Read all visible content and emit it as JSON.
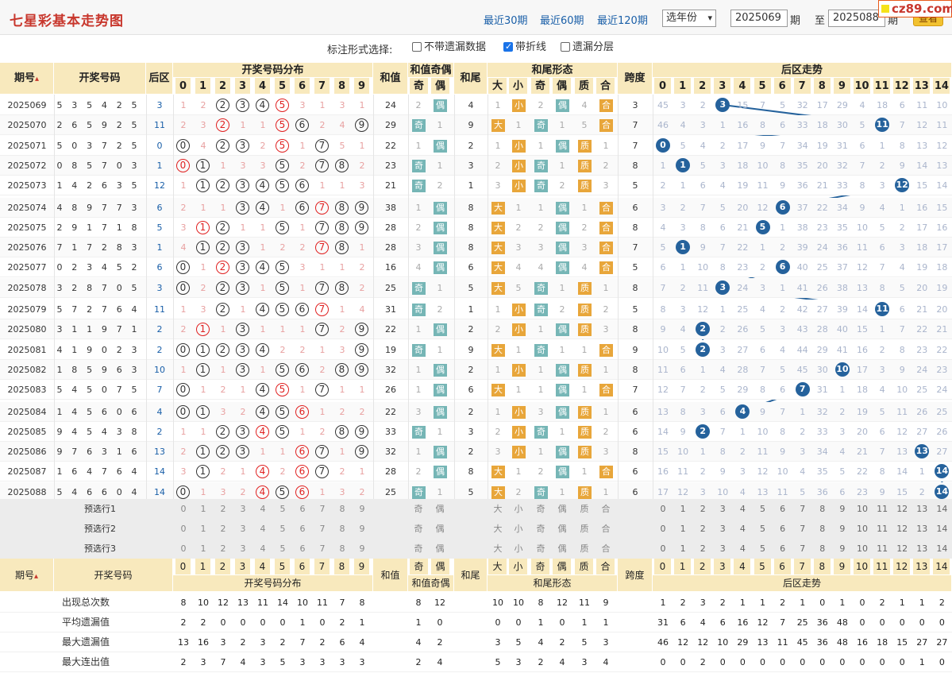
{
  "header": {
    "title": "七星彩基本走势图",
    "links": [
      "最近30期",
      "最近60期",
      "最近120期"
    ],
    "year_select": "选年份",
    "from_value": "2025069",
    "period_label": "期",
    "to_label": "至",
    "to_value": "2025088",
    "period_label2": "期",
    "view_button": "查看",
    "watermark": "cz89.com"
  },
  "options": {
    "caption": "标注形式选择:",
    "items": [
      {
        "label": "不带遗漏数据",
        "checked": false
      },
      {
        "label": "带折线",
        "checked": true
      },
      {
        "label": "遗漏分层",
        "checked": false
      }
    ]
  },
  "columns": {
    "issue": "期号",
    "numbers": "开奖号码",
    "back": "后区",
    "dist": "开奖号码分布",
    "sum": "和值",
    "sum_oe": "和值奇偶",
    "odd": "奇",
    "even": "偶",
    "tail": "和尾",
    "tail_form": "和尾形态",
    "big": "大",
    "small": "小",
    "prime": "质",
    "composite": "合",
    "span": "跨度",
    "back_trend": "后区走势"
  },
  "rows": [
    {
      "issue": "2025069",
      "nums": [
        5,
        3,
        5,
        4,
        2,
        5
      ],
      "back": 3,
      "dist": [
        "1",
        "2",
        "●",
        "●",
        "●",
        "●",
        "3",
        "1",
        "3",
        "1"
      ],
      "sum": 24,
      "oe": [
        "2",
        "偶"
      ],
      "tail": 4,
      "tf": [
        "1",
        "小",
        "2",
        "偶",
        "4",
        "合"
      ],
      "span": 3,
      "bt": [
        "45",
        "3",
        "2",
        "●",
        "15",
        "7",
        "5",
        "32",
        "17",
        "29",
        "4",
        "18",
        "6",
        "11",
        "10"
      ]
    },
    {
      "issue": "2025070",
      "nums": [
        2,
        6,
        5,
        9,
        2,
        5
      ],
      "back": 11,
      "dist": [
        "2",
        "3",
        "●",
        "1",
        "1",
        "●",
        "●",
        "2",
        "4",
        "●"
      ],
      "sum": 29,
      "oe": [
        "奇",
        "1"
      ],
      "tail": 9,
      "tf": [
        "大",
        "1",
        "奇",
        "1",
        "5",
        "合"
      ],
      "span": 7,
      "bt": [
        "46",
        "4",
        "3",
        "1",
        "16",
        "8",
        "6",
        "33",
        "18",
        "30",
        "5",
        "●",
        "7",
        "12",
        "11"
      ]
    },
    {
      "issue": "2025071",
      "nums": [
        5,
        0,
        3,
        7,
        2,
        5
      ],
      "back": 0,
      "dist": [
        "●",
        "4",
        "●",
        "●",
        "2",
        "●",
        "1",
        "●",
        "5",
        "1"
      ],
      "sum": 22,
      "oe": [
        "1",
        "偶"
      ],
      "tail": 2,
      "tf": [
        "1",
        "小",
        "1",
        "偶",
        "质",
        "1"
      ],
      "span": 7,
      "bt": [
        "●",
        "5",
        "4",
        "2",
        "17",
        "9",
        "7",
        "34",
        "19",
        "31",
        "6",
        "1",
        "8",
        "13",
        "12"
      ]
    },
    {
      "issue": "2025072",
      "nums": [
        0,
        8,
        5,
        7,
        0,
        3
      ],
      "back": 1,
      "dist": [
        "●",
        "●",
        "1",
        "3",
        "3",
        "●",
        "2",
        "●",
        "●",
        "2"
      ],
      "sum": 23,
      "oe": [
        "奇",
        "1"
      ],
      "tail": 3,
      "tf": [
        "2",
        "小",
        "奇",
        "1",
        "质",
        "2"
      ],
      "span": 8,
      "bt": [
        "1",
        "●",
        "5",
        "3",
        "18",
        "10",
        "8",
        "35",
        "20",
        "32",
        "7",
        "2",
        "9",
        "14",
        "13"
      ]
    },
    {
      "issue": "2025073",
      "nums": [
        1,
        4,
        2,
        6,
        3,
        5
      ],
      "back": 12,
      "dist": [
        "1",
        "●",
        "●",
        "●",
        "●",
        "●",
        "●",
        "1",
        "1",
        "3"
      ],
      "sum": 21,
      "oe": [
        "奇",
        "2"
      ],
      "tail": 1,
      "tf": [
        "3",
        "小",
        "奇",
        "2",
        "质",
        "3"
      ],
      "span": 5,
      "bt": [
        "2",
        "1",
        "6",
        "4",
        "19",
        "11",
        "9",
        "36",
        "21",
        "33",
        "8",
        "3",
        "●",
        "15",
        "14"
      ]
    },
    {
      "issue": "2025074",
      "nums": [
        4,
        8,
        9,
        7,
        7,
        3
      ],
      "back": 6,
      "dist": [
        "2",
        "1",
        "1",
        "●",
        "●",
        "1",
        "●",
        "●",
        "●",
        "●"
      ],
      "sum": 38,
      "oe": [
        "1",
        "偶"
      ],
      "tail": 8,
      "tf": [
        "大",
        "1",
        "1",
        "偶",
        "1",
        "合"
      ],
      "span": 6,
      "bt": [
        "3",
        "2",
        "7",
        "5",
        "20",
        "12",
        "●",
        "37",
        "22",
        "34",
        "9",
        "4",
        "1",
        "16",
        "15"
      ]
    },
    {
      "issue": "2025075",
      "nums": [
        2,
        9,
        1,
        7,
        1,
        8
      ],
      "back": 5,
      "dist": [
        "3",
        "●",
        "●",
        "1",
        "1",
        "●",
        "1",
        "●",
        "●",
        "●"
      ],
      "sum": 28,
      "oe": [
        "2",
        "偶"
      ],
      "tail": 8,
      "tf": [
        "大",
        "2",
        "2",
        "偶",
        "2",
        "合"
      ],
      "span": 8,
      "bt": [
        "4",
        "3",
        "8",
        "6",
        "21",
        "●",
        "1",
        "38",
        "23",
        "35",
        "10",
        "5",
        "2",
        "17",
        "16"
      ]
    },
    {
      "issue": "2025076",
      "nums": [
        7,
        1,
        7,
        2,
        8,
        3
      ],
      "back": 1,
      "dist": [
        "4",
        "●",
        "●",
        "●",
        "1",
        "2",
        "2",
        "●",
        "●",
        "1"
      ],
      "sum": 28,
      "oe": [
        "3",
        "偶"
      ],
      "tail": 8,
      "tf": [
        "大",
        "3",
        "3",
        "偶",
        "3",
        "合"
      ],
      "span": 7,
      "bt": [
        "5",
        "●",
        "9",
        "7",
        "22",
        "1",
        "2",
        "39",
        "24",
        "36",
        "11",
        "6",
        "3",
        "18",
        "17"
      ]
    },
    {
      "issue": "2025077",
      "nums": [
        0,
        2,
        3,
        4,
        5,
        2
      ],
      "back": 6,
      "dist": [
        "●",
        "1",
        "●",
        "●",
        "●",
        "●",
        "3",
        "1",
        "1",
        "2"
      ],
      "sum": 16,
      "oe": [
        "4",
        "偶"
      ],
      "tail": 6,
      "tf": [
        "大",
        "4",
        "4",
        "偶",
        "4",
        "合"
      ],
      "span": 5,
      "bt": [
        "6",
        "1",
        "10",
        "8",
        "23",
        "2",
        "●",
        "40",
        "25",
        "37",
        "12",
        "7",
        "4",
        "19",
        "18"
      ]
    },
    {
      "issue": "2025078",
      "nums": [
        3,
        2,
        8,
        7,
        0,
        5
      ],
      "back": 3,
      "dist": [
        "●",
        "2",
        "●",
        "●",
        "1",
        "●",
        "1",
        "●",
        "●",
        "2"
      ],
      "sum": 25,
      "oe": [
        "奇",
        "1"
      ],
      "tail": 5,
      "tf": [
        "大",
        "5",
        "奇",
        "1",
        "质",
        "1"
      ],
      "span": 8,
      "bt": [
        "7",
        "2",
        "11",
        "●",
        "24",
        "3",
        "1",
        "41",
        "26",
        "38",
        "13",
        "8",
        "5",
        "20",
        "19"
      ]
    },
    {
      "issue": "2025079",
      "nums": [
        5,
        7,
        2,
        7,
        6,
        4
      ],
      "back": 11,
      "dist": [
        "1",
        "3",
        "●",
        "1",
        "●",
        "●",
        "●",
        "●",
        "1",
        "4"
      ],
      "sum": 31,
      "oe": [
        "奇",
        "2"
      ],
      "tail": 1,
      "tf": [
        "1",
        "小",
        "奇",
        "2",
        "质",
        "2"
      ],
      "span": 5,
      "bt": [
        "8",
        "3",
        "12",
        "1",
        "25",
        "4",
        "2",
        "42",
        "27",
        "39",
        "14",
        "●",
        "6",
        "21",
        "20"
      ]
    },
    {
      "issue": "2025080",
      "nums": [
        3,
        1,
        1,
        9,
        7,
        1
      ],
      "back": 2,
      "dist": [
        "2",
        "●",
        "1",
        "●",
        "1",
        "1",
        "1",
        "●",
        "2",
        "●"
      ],
      "sum": 22,
      "oe": [
        "1",
        "偶"
      ],
      "tail": 2,
      "tf": [
        "2",
        "小",
        "1",
        "偶",
        "质",
        "3"
      ],
      "span": 8,
      "bt": [
        "9",
        "4",
        "●",
        "2",
        "26",
        "5",
        "3",
        "43",
        "28",
        "40",
        "15",
        "1",
        "7",
        "22",
        "21"
      ]
    },
    {
      "issue": "2025081",
      "nums": [
        4,
        1,
        9,
        0,
        2,
        3
      ],
      "back": 2,
      "dist": [
        "●",
        "●",
        "●",
        "●",
        "●",
        "2",
        "2",
        "1",
        "3",
        "●"
      ],
      "sum": 19,
      "oe": [
        "奇",
        "1"
      ],
      "tail": 9,
      "tf": [
        "大",
        "1",
        "奇",
        "1",
        "1",
        "合"
      ],
      "span": 9,
      "bt": [
        "10",
        "5",
        "●",
        "3",
        "27",
        "6",
        "4",
        "44",
        "29",
        "41",
        "16",
        "2",
        "8",
        "23",
        "22"
      ]
    },
    {
      "issue": "2025082",
      "nums": [
        1,
        8,
        5,
        9,
        6,
        3
      ],
      "back": 10,
      "dist": [
        "1",
        "●",
        "1",
        "●",
        "1",
        "●",
        "●",
        "2",
        "●",
        "●"
      ],
      "sum": 32,
      "oe": [
        "1",
        "偶"
      ],
      "tail": 2,
      "tf": [
        "1",
        "小",
        "1",
        "偶",
        "质",
        "1"
      ],
      "span": 8,
      "bt": [
        "11",
        "6",
        "1",
        "4",
        "28",
        "7",
        "5",
        "45",
        "30",
        "●",
        "17",
        "3",
        "9",
        "24",
        "23"
      ]
    },
    {
      "issue": "2025083",
      "nums": [
        5,
        4,
        5,
        0,
        7,
        5
      ],
      "back": 7,
      "dist": [
        "●",
        "1",
        "2",
        "1",
        "●",
        "●",
        "1",
        "●",
        "1",
        "1"
      ],
      "sum": 26,
      "oe": [
        "1",
        "偶"
      ],
      "tail": 6,
      "tf": [
        "大",
        "1",
        "1",
        "偶",
        "1",
        "合"
      ],
      "span": 7,
      "bt": [
        "12",
        "7",
        "2",
        "5",
        "29",
        "8",
        "6",
        "●",
        "31",
        "1",
        "18",
        "4",
        "10",
        "25",
        "24"
      ]
    },
    {
      "issue": "2025084",
      "nums": [
        1,
        4,
        5,
        6,
        0,
        6
      ],
      "back": 4,
      "dist": [
        "●",
        "●",
        "3",
        "2",
        "●",
        "●",
        "●",
        "1",
        "2",
        "2"
      ],
      "sum": 22,
      "oe": [
        "3",
        "偶"
      ],
      "tail": 2,
      "tf": [
        "1",
        "小",
        "3",
        "偶",
        "质",
        "1"
      ],
      "span": 6,
      "bt": [
        "13",
        "8",
        "3",
        "6",
        "●",
        "9",
        "7",
        "1",
        "32",
        "2",
        "19",
        "5",
        "11",
        "26",
        "25"
      ]
    },
    {
      "issue": "2025085",
      "nums": [
        9,
        4,
        5,
        4,
        3,
        8
      ],
      "back": 2,
      "dist": [
        "1",
        "1",
        "●",
        "●",
        "●",
        "●",
        "1",
        "2",
        "●",
        "●"
      ],
      "sum": 33,
      "oe": [
        "奇",
        "1"
      ],
      "tail": 3,
      "tf": [
        "2",
        "小",
        "奇",
        "1",
        "质",
        "2"
      ],
      "span": 6,
      "bt": [
        "14",
        "9",
        "●",
        "7",
        "1",
        "10",
        "8",
        "2",
        "33",
        "3",
        "20",
        "6",
        "12",
        "27",
        "26"
      ]
    },
    {
      "issue": "2025086",
      "nums": [
        9,
        7,
        6,
        3,
        1,
        6
      ],
      "back": 13,
      "dist": [
        "2",
        "●",
        "●",
        "●",
        "1",
        "1",
        "●",
        "●",
        "1",
        "●"
      ],
      "sum": 32,
      "oe": [
        "1",
        "偶"
      ],
      "tail": 2,
      "tf": [
        "3",
        "小",
        "1",
        "偶",
        "质",
        "3"
      ],
      "span": 8,
      "bt": [
        "15",
        "10",
        "1",
        "8",
        "2",
        "11",
        "9",
        "3",
        "34",
        "4",
        "21",
        "7",
        "13",
        "●",
        "27"
      ]
    },
    {
      "issue": "2025087",
      "nums": [
        1,
        6,
        4,
        7,
        6,
        4
      ],
      "back": 14,
      "dist": [
        "3",
        "●",
        "2",
        "1",
        "●",
        "2",
        "●",
        "●",
        "2",
        "1"
      ],
      "sum": 28,
      "oe": [
        "2",
        "偶"
      ],
      "tail": 8,
      "tf": [
        "大",
        "1",
        "2",
        "偶",
        "1",
        "合"
      ],
      "span": 6,
      "bt": [
        "16",
        "11",
        "2",
        "9",
        "3",
        "12",
        "10",
        "4",
        "35",
        "5",
        "22",
        "8",
        "14",
        "1",
        "●"
      ]
    },
    {
      "issue": "2025088",
      "nums": [
        5,
        4,
        6,
        6,
        0,
        4
      ],
      "back": 14,
      "dist": [
        "●",
        "1",
        "3",
        "2",
        "●",
        "●",
        "●",
        "1",
        "3",
        "2"
      ],
      "sum": 25,
      "oe": [
        "奇",
        "1"
      ],
      "tail": 5,
      "tf": [
        "大",
        "2",
        "奇",
        "1",
        "质",
        "1"
      ],
      "span": 6,
      "bt": [
        "17",
        "12",
        "3",
        "10",
        "4",
        "13",
        "11",
        "5",
        "36",
        "6",
        "23",
        "9",
        "15",
        "2",
        "●"
      ]
    }
  ],
  "predict_rows": [
    "预选行1",
    "预选行2",
    "预选行3"
  ],
  "digits": [
    "0",
    "1",
    "2",
    "3",
    "4",
    "5",
    "6",
    "7",
    "8",
    "9"
  ],
  "back_digits": [
    "0",
    "1",
    "2",
    "3",
    "4",
    "5",
    "6",
    "7",
    "8",
    "9",
    "10",
    "11",
    "12",
    "13",
    "14"
  ],
  "oe_labels": [
    "奇",
    "偶"
  ],
  "tf_labels": [
    "大",
    "小",
    "奇",
    "偶",
    "质",
    "合"
  ],
  "stats": [
    {
      "label": "出现总次数",
      "dist": [
        "8",
        "10",
        "12",
        "13",
        "11",
        "14",
        "10",
        "11",
        "7",
        "8"
      ],
      "oe": [
        "8",
        "12"
      ],
      "tf": [
        "10",
        "10",
        "8",
        "12",
        "11",
        "9"
      ],
      "bt": [
        "1",
        "2",
        "3",
        "2",
        "1",
        "1",
        "2",
        "1",
        "0",
        "1",
        "0",
        "2",
        "1",
        "1",
        "2"
      ]
    },
    {
      "label": "平均遗漏值",
      "dist": [
        "2",
        "2",
        "0",
        "0",
        "0",
        "0",
        "1",
        "0",
        "2",
        "1"
      ],
      "oe": [
        "1",
        "0"
      ],
      "tf": [
        "0",
        "0",
        "1",
        "0",
        "1",
        "1"
      ],
      "bt": [
        "31",
        "6",
        "4",
        "6",
        "16",
        "12",
        "7",
        "25",
        "36",
        "48",
        "0",
        "0",
        "0",
        "0",
        "0"
      ]
    },
    {
      "label": "最大遗漏值",
      "dist": [
        "13",
        "16",
        "3",
        "2",
        "3",
        "2",
        "7",
        "2",
        "6",
        "4"
      ],
      "oe": [
        "4",
        "2"
      ],
      "tf": [
        "3",
        "5",
        "4",
        "2",
        "5",
        "3"
      ],
      "bt": [
        "46",
        "12",
        "12",
        "10",
        "29",
        "13",
        "11",
        "45",
        "36",
        "48",
        "16",
        "18",
        "15",
        "27",
        "27"
      ]
    },
    {
      "label": "最大连出值",
      "dist": [
        "2",
        "3",
        "7",
        "4",
        "3",
        "5",
        "3",
        "3",
        "3",
        "3"
      ],
      "oe": [
        "2",
        "4"
      ],
      "tf": [
        "5",
        "3",
        "2",
        "4",
        "3",
        "4"
      ],
      "bt": [
        "0",
        "0",
        "2",
        "0",
        "0",
        "0",
        "0",
        "0",
        "0",
        "0",
        "0",
        "0",
        "0",
        "1",
        "0"
      ]
    }
  ],
  "colors": {
    "header_bg": "#f8e9bd",
    "dot": "#25629c",
    "red": "#e02020",
    "odd_tag": "#76b6b6",
    "big_tag": "#e8a63a"
  }
}
